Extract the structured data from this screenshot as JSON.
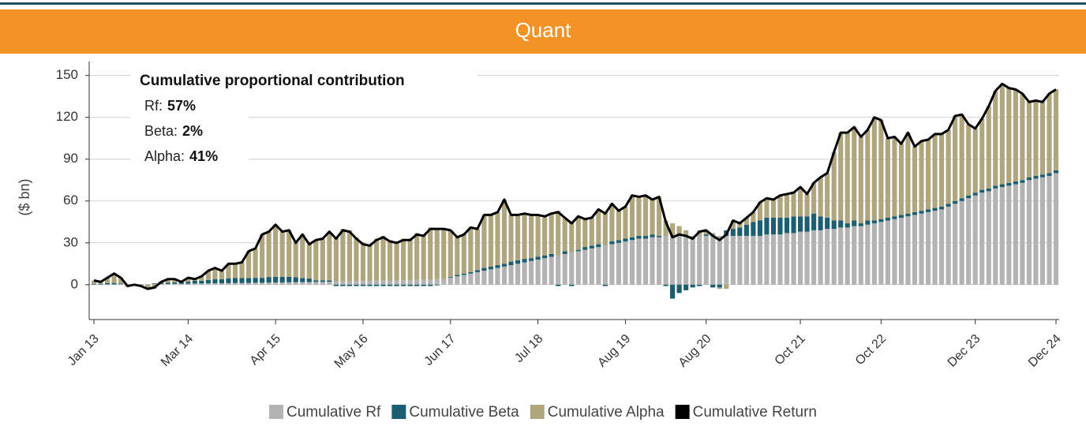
{
  "chart_data": {
    "type": "bar",
    "stacked": true,
    "title": "Quant",
    "y_label": "($ bn)",
    "annotation": {
      "title": "Cumulative proportional contribution",
      "items": [
        {
          "label": "Rf:",
          "value": "57%"
        },
        {
          "label": "Beta:",
          "value": "2%"
        },
        {
          "label": "Alpha:",
          "value": "41%"
        }
      ]
    },
    "categories": [
      "Jan 13",
      null,
      null,
      null,
      null,
      null,
      null,
      null,
      null,
      null,
      null,
      null,
      null,
      null,
      "Mar 14",
      null,
      null,
      null,
      null,
      null,
      null,
      null,
      null,
      null,
      null,
      null,
      null,
      "Apr 15",
      null,
      null,
      null,
      null,
      null,
      null,
      null,
      null,
      null,
      null,
      null,
      null,
      "May 16",
      null,
      null,
      null,
      null,
      null,
      null,
      null,
      null,
      null,
      null,
      null,
      null,
      "Jun 17",
      null,
      null,
      null,
      null,
      null,
      null,
      null,
      null,
      null,
      null,
      null,
      null,
      "Jul 18",
      null,
      null,
      null,
      null,
      null,
      null,
      null,
      null,
      null,
      null,
      null,
      null,
      "Aug 19",
      null,
      null,
      null,
      null,
      null,
      null,
      null,
      null,
      null,
      null,
      null,
      "Aug 20",
      null,
      null,
      null,
      null,
      null,
      null,
      null,
      null,
      null,
      null,
      null,
      null,
      null,
      "Oct 21",
      null,
      null,
      null,
      null,
      null,
      null,
      null,
      null,
      null,
      null,
      null,
      "Oct 22",
      null,
      null,
      null,
      null,
      null,
      null,
      null,
      null,
      null,
      null,
      null,
      null,
      null,
      "Dec 23",
      null,
      null,
      null,
      null,
      null,
      null,
      null,
      null,
      null,
      null,
      null,
      "Dec 24"
    ],
    "series": [
      {
        "name": "Cumulative Rf",
        "color": "#b3b3b3",
        "type": "bar",
        "values": [
          0.1,
          0.1,
          0.2,
          0.2,
          0.3,
          0.3,
          0.3,
          0.4,
          0.4,
          0.4,
          0.5,
          0.5,
          0.6,
          0.6,
          0.7,
          0.8,
          0.8,
          0.9,
          1,
          1,
          1.1,
          1.2,
          1.2,
          1.3,
          1.4,
          1.4,
          1.5,
          1.6,
          1.6,
          1.7,
          1.8,
          1.8,
          1.9,
          2,
          2,
          2.1,
          2.2,
          2.3,
          2.4,
          2.5,
          2.6,
          2.7,
          2.8,
          2.9,
          3,
          3.1,
          3.2,
          3.3,
          3.4,
          3.6,
          3.8,
          4,
          4.2,
          5,
          6,
          7,
          8,
          9,
          10,
          11,
          12,
          13,
          14,
          15,
          16,
          17,
          18,
          19,
          20,
          21,
          22,
          23,
          24,
          25,
          26,
          27,
          28,
          29,
          30,
          31,
          32,
          33,
          33,
          34,
          34,
          35,
          35,
          35,
          35,
          35,
          35,
          35,
          35,
          35,
          35,
          35,
          35,
          35,
          35,
          35,
          36,
          36,
          36,
          37,
          37,
          38,
          38,
          39,
          39,
          40,
          40,
          41,
          41,
          42,
          42,
          43,
          44,
          45,
          46,
          47,
          48,
          49,
          50,
          51,
          52,
          53,
          54,
          56,
          58,
          60,
          62,
          64,
          66,
          67,
          69,
          70,
          71,
          72,
          73,
          75,
          76,
          77,
          78,
          80
        ]
      },
      {
        "name": "Cumulative Beta",
        "color": "#1b5e72",
        "type": "bar",
        "values": [
          0.5,
          0.5,
          1,
          1,
          0.5,
          0,
          0,
          0,
          0,
          0.5,
          1,
          1,
          1,
          1,
          1.5,
          2,
          2,
          2.5,
          3,
          3,
          3.5,
          3.5,
          3.5,
          3.5,
          3.5,
          3.5,
          4,
          4,
          4,
          4,
          3.5,
          3,
          2.5,
          1,
          1,
          1,
          -1,
          -1,
          -1,
          -1,
          -1,
          -1,
          -1,
          -1,
          -1,
          -1,
          -1,
          -1,
          -1,
          -1,
          -1,
          -0.5,
          0,
          0.5,
          1,
          1,
          1,
          1.5,
          2,
          2,
          2,
          2,
          2.5,
          2.5,
          2.5,
          2,
          2,
          2,
          2,
          -1,
          2,
          -1,
          1,
          2,
          2,
          2,
          -1,
          2,
          2,
          2,
          2,
          2,
          2,
          2,
          1,
          -1,
          -10,
          -6,
          -4,
          -2,
          -1,
          1,
          -2,
          -2,
          4,
          5,
          6,
          8,
          10,
          11,
          12,
          12,
          12,
          11,
          12,
          11,
          11,
          12,
          10,
          8,
          6,
          5,
          3,
          4,
          2,
          3,
          2,
          2,
          2,
          2,
          2,
          2,
          2,
          2,
          2,
          2,
          2,
          2,
          2,
          2,
          2,
          2,
          2,
          2,
          2,
          2,
          2,
          2,
          2,
          2,
          2,
          2,
          2,
          2
        ]
      },
      {
        "name": "Cumulative Alpha",
        "color": "#b0a67e",
        "type": "bar",
        "values": [
          2.4,
          1.4,
          3.8,
          6.8,
          4.2,
          -1.3,
          -0.3,
          -1.4,
          -3.4,
          -2.9,
          0.5,
          2.5,
          2.4,
          0.4,
          2.8,
          1.2,
          3.2,
          6.6,
          8,
          6,
          10.4,
          10.3,
          11.3,
          19.2,
          21.1,
          31.1,
          32.5,
          37.4,
          32.4,
          33.3,
          24.7,
          31.2,
          24.6,
          29,
          30,
          34.9,
          31.8,
          37.7,
          36.6,
          31.5,
          27.4,
          26.3,
          30.2,
          32.1,
          29,
          27.9,
          29.8,
          29.7,
          33.6,
          32.4,
          37.2,
          36.5,
          35.8,
          33.5,
          27,
          28,
          32,
          29.5,
          38,
          37,
          38,
          46,
          33.5,
          32.5,
          32.5,
          31,
          30,
          28,
          29,
          32,
          24,
          22,
          24,
          20,
          20,
          25,
          24,
          27,
          21,
          23,
          30,
          28,
          29,
          25,
          28,
          11,
          9,
          7,
          4,
          0,
          4,
          3,
          2,
          -1,
          -3,
          6,
          3,
          5,
          7,
          13,
          14,
          13,
          16,
          17,
          17,
          21,
          16,
          22,
          28,
          32,
          49,
          63,
          65,
          67,
          62,
          65,
          74,
          71,
          57,
          57,
          51,
          58,
          47,
          50,
          50,
          53,
          52,
          53,
          61,
          60,
          51,
          46,
          51,
          59,
          68,
          72,
          68,
          66,
          62,
          54,
          54,
          52,
          57,
          58
        ]
      },
      {
        "name": "Cumulative Return",
        "color": "#000000",
        "type": "line",
        "values": [
          3,
          2,
          5,
          8,
          5,
          -1,
          0,
          -1,
          -3,
          -2,
          2,
          4,
          4,
          2,
          5,
          4,
          6,
          10,
          12,
          10,
          15,
          15,
          16,
          24,
          26,
          36,
          38,
          43,
          38,
          39,
          30,
          36,
          29,
          32,
          33,
          38,
          33,
          39,
          38,
          33,
          29,
          28,
          32,
          34,
          31,
          30,
          32,
          32,
          36,
          35,
          40,
          40,
          40,
          39,
          34,
          36,
          41,
          40,
          50,
          50,
          52,
          61,
          50,
          50,
          51,
          50,
          50,
          49,
          51,
          52,
          48,
          44,
          49,
          47,
          48,
          54,
          51,
          58,
          53,
          56,
          64,
          63,
          64,
          61,
          63,
          45,
          34,
          36,
          35,
          33,
          38,
          39,
          35,
          32,
          36,
          46,
          44,
          48,
          52,
          59,
          62,
          61,
          64,
          65,
          66,
          70,
          65,
          73,
          77,
          80,
          95,
          109,
          109,
          113,
          106,
          111,
          120,
          118,
          105,
          106,
          101,
          109,
          99,
          103,
          104,
          108,
          108,
          111,
          121,
          122,
          115,
          112,
          119,
          128,
          139,
          144,
          141,
          140,
          137,
          131,
          132,
          131,
          137,
          140
        ]
      }
    ],
    "ylim": [
      -25,
      160
    ],
    "yticks": [
      0,
      30,
      60,
      90,
      120,
      150
    ],
    "grid": true,
    "header_color": "#f39325"
  }
}
